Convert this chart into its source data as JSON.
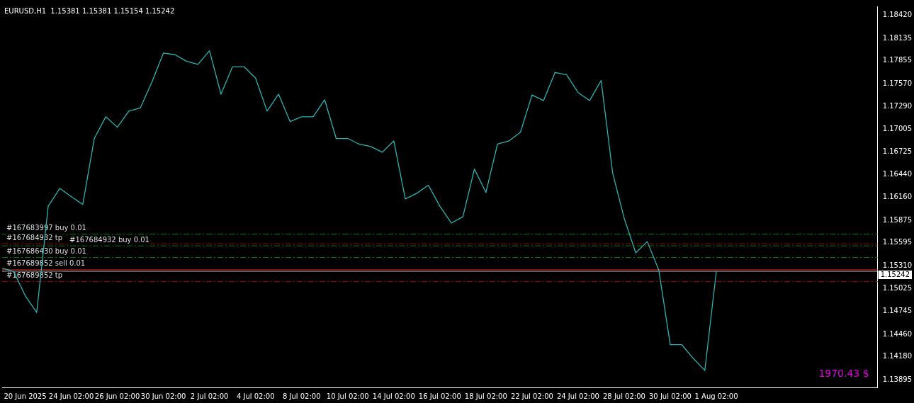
{
  "chart_data": {
    "type": "line",
    "title": "EURUSD,H1  1.15381 1.15381 1.15154 1.15242",
    "categories": [
      null,
      null,
      "20 Jun 2025",
      null,
      null,
      null,
      "24 Jun 02:00",
      null,
      null,
      null,
      "26 Jun 02:00",
      null,
      null,
      null,
      "30 Jun 02:00",
      null,
      null,
      null,
      "2 Jul 02:00",
      null,
      null,
      null,
      "4 Jul 02:00",
      null,
      null,
      null,
      "8 Jul 02:00",
      null,
      null,
      null,
      "10 Jul 02:00",
      null,
      null,
      null,
      "14 Jul 02:00",
      null,
      null,
      null,
      "16 Jul 02:00",
      null,
      null,
      null,
      "18 Jul 02:00",
      null,
      null,
      null,
      "22 Jul 02:00",
      null,
      null,
      null,
      "24 Jul 02:00",
      null,
      null,
      null,
      "28 Jul 02:00",
      null,
      null,
      null,
      "30 Jul 02:00",
      null,
      null,
      null,
      "1 Aug 02:00",
      null,
      null,
      null,
      null,
      null,
      null,
      null,
      null,
      null,
      null,
      null,
      null,
      null,
      null
    ],
    "series": [
      {
        "color": "#2ab3b3",
        "values": [
          1.1528,
          1.1524,
          1.1494,
          1.1473,
          1.1605,
          1.1627,
          1.1617,
          1.1607,
          1.1689,
          1.1716,
          1.1703,
          1.1723,
          1.1727,
          1.1759,
          1.1795,
          1.1793,
          1.1785,
          1.1781,
          1.1798,
          1.1744,
          1.1778,
          1.1778,
          1.1764,
          1.1723,
          1.1744,
          1.171,
          1.1716,
          1.1716,
          1.1737,
          1.1689,
          1.1689,
          1.1682,
          1.1679,
          1.1672,
          1.1686,
          1.1614,
          1.1621,
          1.1631,
          1.1605,
          1.1584,
          1.1592,
          1.1651,
          1.1622,
          1.1682,
          1.1686,
          1.1697,
          1.1743,
          1.1736,
          1.1771,
          1.1768,
          1.1746,
          1.1736,
          1.1761,
          1.1646,
          1.159,
          1.1547,
          1.1561,
          1.1526,
          1.1433,
          1.1433,
          1.1416,
          1.1401,
          1.15242,
          null,
          null,
          null,
          null,
          null,
          null,
          null,
          null,
          null,
          null,
          null,
          null,
          null,
          null
        ]
      }
    ],
    "ylim": [
      1.138,
      1.1853
    ],
    "yticks": [
      {
        "value": 1.13895,
        "label": "1.13895"
      },
      {
        "value": 1.1418,
        "label": "1.14180"
      },
      {
        "value": 1.1446,
        "label": "1.14460"
      },
      {
        "value": 1.14745,
        "label": "1.14745"
      },
      {
        "value": 1.15025,
        "label": "1.15025"
      },
      {
        "value": 1.1531,
        "label": "1.15310"
      },
      {
        "value": 1.15595,
        "label": "1.15595"
      },
      {
        "value": 1.15875,
        "label": "1.15875"
      },
      {
        "value": 1.1616,
        "label": "1.16160"
      },
      {
        "value": 1.1644,
        "label": "1.16440"
      },
      {
        "value": 1.16725,
        "label": "1.16725"
      },
      {
        "value": 1.17005,
        "label": "1.17005"
      },
      {
        "value": 1.1729,
        "label": "1.17290"
      },
      {
        "value": 1.1757,
        "label": "1.17570"
      },
      {
        "value": 1.17855,
        "label": "1.17855"
      },
      {
        "value": 1.18135,
        "label": "1.18135"
      },
      {
        "value": 1.1842,
        "label": "1.18420"
      }
    ],
    "ref_lines": [
      {
        "axis": "y",
        "value": 1.15702,
        "label": "#167683997 buy 0.01",
        "color": "#008000",
        "line_style": "dashed"
      },
      {
        "axis": "y",
        "value": 1.15583,
        "label": "#167684932 tp",
        "color": "#b00000",
        "line_style": "dashed"
      },
      {
        "axis": "y",
        "value": 1.15557,
        "label": "#167684932 buy 0.01",
        "color": "#008000",
        "line_style": "dashed"
      },
      {
        "axis": "y",
        "value": 1.15412,
        "label": "#167686430 buy 0.01",
        "color": "#008000",
        "line_style": "dashed"
      },
      {
        "axis": "y",
        "value": 1.15262,
        "label": "#167689852 sell 0.01",
        "color": "#d00000",
        "line_style": "solid"
      },
      {
        "axis": "y",
        "value": 1.15242,
        "label": "1.15242",
        "color": "#c0c0c0",
        "line_style": "solid"
      },
      {
        "axis": "y",
        "value": 1.15113,
        "label": "#167689852 tp",
        "color": "#b00000",
        "line_style": "dashed"
      }
    ],
    "annotations": [
      "1970.43 $"
    ],
    "grid": false,
    "legend": false
  }
}
